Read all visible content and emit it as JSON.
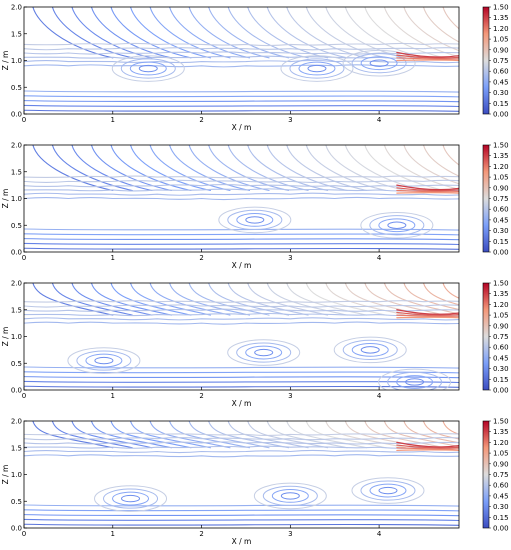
{
  "chart_data": [
    {
      "type": "streamplot",
      "xlabel": "X / m",
      "ylabel": "Z / m",
      "xlim": [
        0,
        4.9
      ],
      "ylim": [
        0,
        2.0
      ],
      "x_ticks": [
        "0",
        "1",
        "2",
        "3",
        "4"
      ],
      "y_ticks": [
        "0.0",
        "0.5",
        "1.0",
        "1.5",
        "2.0"
      ],
      "colorbar": {
        "min": 0.0,
        "max": 1.5,
        "colormap": "coolwarm",
        "ticks": [
          "1.50",
          "1.35",
          "1.20",
          "1.05",
          "0.90",
          "0.75",
          "0.60",
          "0.45",
          "0.30",
          "0.15",
          "0.00"
        ]
      },
      "vortex_centers": [
        [
          1.4,
          0.85
        ],
        [
          3.3,
          0.85
        ],
        [
          4.0,
          0.95
        ]
      ],
      "jet_height": 1.0
    },
    {
      "type": "streamplot",
      "xlabel": "X / m",
      "ylabel": "Z / m",
      "xlim": [
        0,
        4.9
      ],
      "ylim": [
        0,
        2.0
      ],
      "x_ticks": [
        "0",
        "1",
        "2",
        "3",
        "4"
      ],
      "y_ticks": [
        "0.0",
        "0.5",
        "1.0",
        "1.5",
        "2.0"
      ],
      "colorbar": {
        "min": 0.0,
        "max": 1.5,
        "colormap": "coolwarm",
        "ticks": [
          "1.50",
          "1.35",
          "1.20",
          "1.05",
          "0.90",
          "0.75",
          "0.60",
          "0.45",
          "0.30",
          "0.15",
          "0.00"
        ]
      },
      "vortex_centers": [
        [
          2.6,
          0.6
        ],
        [
          4.2,
          0.5
        ]
      ],
      "jet_height": 1.1
    },
    {
      "type": "streamplot",
      "xlabel": "X / m",
      "ylabel": "Z / m",
      "xlim": [
        0,
        4.9
      ],
      "ylim": [
        0,
        2.0
      ],
      "x_ticks": [
        "0",
        "1",
        "2",
        "3",
        "4"
      ],
      "y_ticks": [
        "0.0",
        "0.5",
        "1.0",
        "1.5",
        "2.0"
      ],
      "colorbar": {
        "min": 0.0,
        "max": 1.5,
        "colormap": "coolwarm",
        "ticks": [
          "1.50",
          "1.35",
          "1.20",
          "1.05",
          "0.90",
          "0.75",
          "0.60",
          "0.45",
          "0.30",
          "0.15",
          "0.00"
        ]
      },
      "vortex_centers": [
        [
          0.9,
          0.55
        ],
        [
          2.7,
          0.7
        ],
        [
          3.9,
          0.75
        ],
        [
          4.4,
          0.15
        ]
      ],
      "jet_height": 1.35
    },
    {
      "type": "streamplot",
      "xlabel": "X / m",
      "ylabel": "Z / m",
      "xlim": [
        0,
        4.9
      ],
      "ylim": [
        0,
        2.0
      ],
      "x_ticks": [
        "0",
        "1",
        "2",
        "3",
        "4"
      ],
      "y_ticks": [
        "0.0",
        "0.5",
        "1.0",
        "1.5",
        "2.0"
      ],
      "colorbar": {
        "min": 0.0,
        "max": 1.5,
        "colormap": "coolwarm",
        "ticks": [
          "1.50",
          "1.35",
          "1.20",
          "1.05",
          "0.90",
          "0.75",
          "0.60",
          "0.45",
          "0.30",
          "0.15",
          "0.00"
        ]
      },
      "vortex_centers": [
        [
          1.2,
          0.55
        ],
        [
          3.0,
          0.6
        ],
        [
          4.1,
          0.7
        ]
      ],
      "jet_height": 1.45
    }
  ]
}
